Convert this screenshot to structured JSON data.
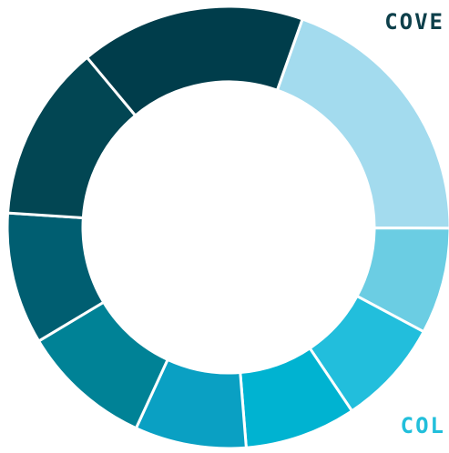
{
  "labels": {
    "top": {
      "text": "COVE",
      "color": "#0d3f4a"
    },
    "bottom": {
      "text": "COL",
      "color": "#22bfdb"
    }
  },
  "chart_data": {
    "type": "pie",
    "variant": "donut",
    "title": "",
    "start_angle_deg": 19.5,
    "direction": "clockwise",
    "separator_color": "#ffffff",
    "slices": [
      {
        "value": 21.0,
        "color": "#a3dbee"
      },
      {
        "value": 8.3,
        "color": "#6bcde3"
      },
      {
        "value": 8.3,
        "color": "#22bedc"
      },
      {
        "value": 8.7,
        "color": "#00b3d1"
      },
      {
        "value": 8.7,
        "color": "#0aa0c3"
      },
      {
        "value": 10.2,
        "color": "#008296"
      },
      {
        "value": 10.3,
        "color": "#005e71"
      },
      {
        "value": 13.8,
        "color": "#024653"
      },
      {
        "value": 17.6,
        "color": "#003d4b"
      }
    ]
  }
}
